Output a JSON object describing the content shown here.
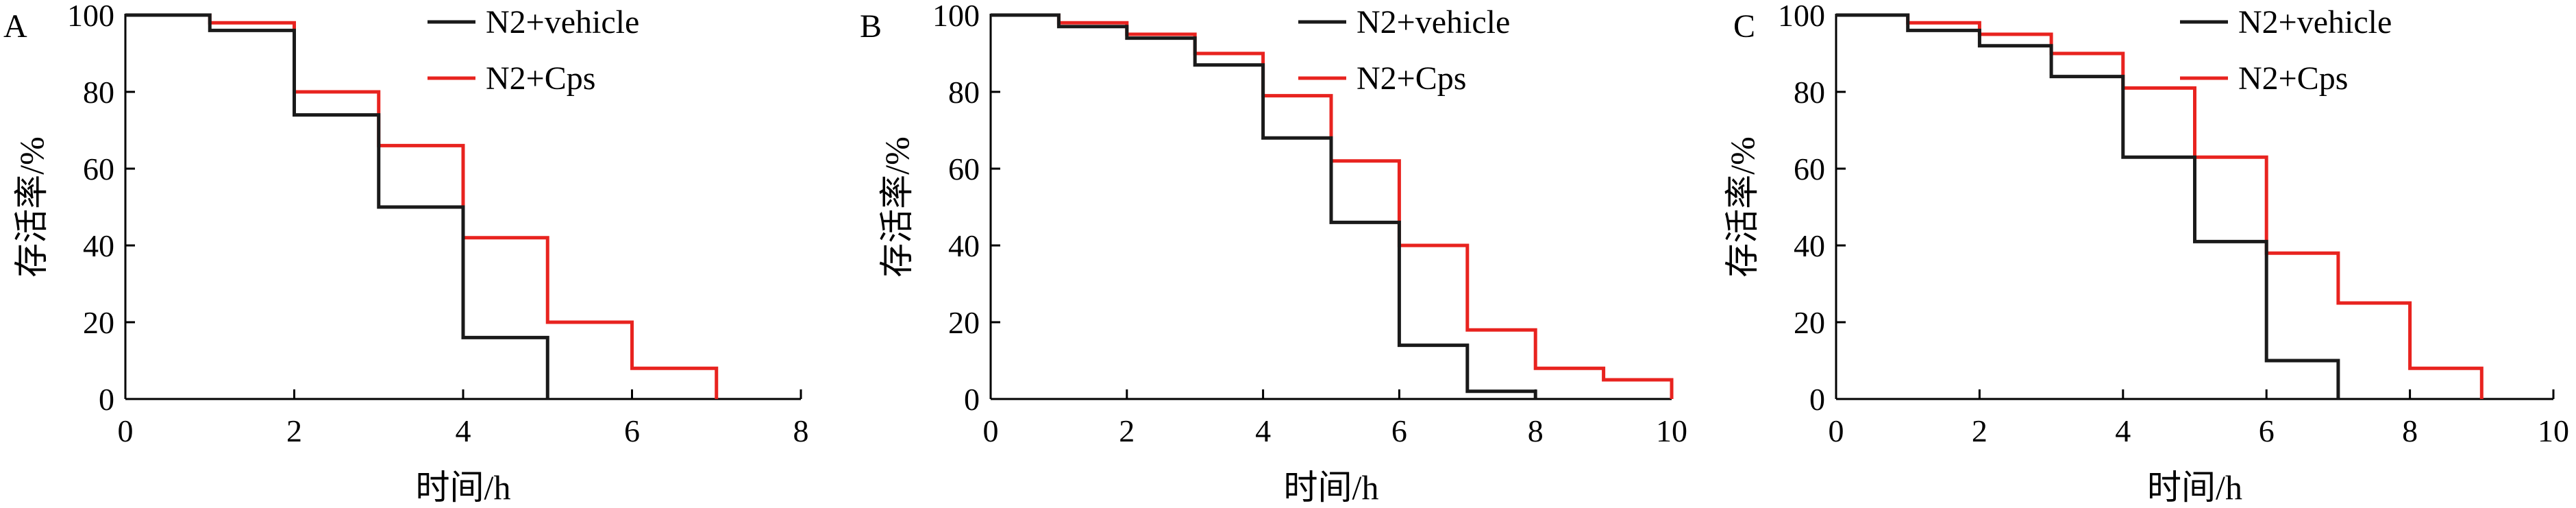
{
  "colors": {
    "vehicle": "#1a1a1a",
    "cps": "#e8231f"
  },
  "chart_data": [
    {
      "panel_label": "A",
      "type": "line",
      "step": true,
      "xlabel": "时间/h",
      "ylabel": "存活率/%",
      "xlim": [
        0,
        8
      ],
      "ylim": [
        0,
        100
      ],
      "xticks": [
        0,
        2,
        4,
        6,
        8
      ],
      "yticks": [
        0,
        20,
        40,
        60,
        80,
        100
      ],
      "legend_position": "top-right",
      "series": [
        {
          "name": "N2+vehicle",
          "color": "#1a1a1a",
          "x": [
            0,
            1,
            2,
            3,
            4,
            5
          ],
          "y": [
            100,
            96,
            74,
            50,
            16,
            0
          ]
        },
        {
          "name": "N2+Cps",
          "color": "#e8231f",
          "x": [
            0,
            1,
            2,
            3,
            4,
            5,
            6,
            7
          ],
          "y": [
            100,
            98,
            80,
            66,
            42,
            20,
            8,
            0
          ]
        }
      ]
    },
    {
      "panel_label": "B",
      "type": "line",
      "step": true,
      "xlabel": "时间/h",
      "ylabel": "存活率/%",
      "xlim": [
        0,
        10
      ],
      "ylim": [
        0,
        100
      ],
      "xticks": [
        0,
        2,
        4,
        6,
        8,
        10
      ],
      "yticks": [
        0,
        20,
        40,
        60,
        80,
        100
      ],
      "legend_position": "top-right",
      "series": [
        {
          "name": "N2+vehicle",
          "color": "#1a1a1a",
          "x": [
            0,
            1,
            2,
            3,
            4,
            5,
            6,
            7,
            8
          ],
          "y": [
            100,
            97,
            94,
            87,
            68,
            46,
            14,
            2,
            0
          ]
        },
        {
          "name": "N2+Cps",
          "color": "#e8231f",
          "x": [
            0,
            1,
            2,
            3,
            4,
            5,
            6,
            7,
            8,
            9,
            10
          ],
          "y": [
            100,
            98,
            95,
            90,
            79,
            62,
            40,
            18,
            8,
            5,
            0
          ]
        }
      ]
    },
    {
      "panel_label": "C",
      "type": "line",
      "step": true,
      "xlabel": "时间/h",
      "ylabel": "存活率/%",
      "xlim": [
        0,
        10
      ],
      "ylim": [
        0,
        100
      ],
      "xticks": [
        0,
        2,
        4,
        6,
        8,
        10
      ],
      "yticks": [
        0,
        20,
        40,
        60,
        80,
        100
      ],
      "legend_position": "top-right",
      "series": [
        {
          "name": "N2+vehicle",
          "color": "#1a1a1a",
          "x": [
            0,
            1,
            2,
            3,
            4,
            5,
            6,
            7
          ],
          "y": [
            100,
            96,
            92,
            84,
            63,
            41,
            10,
            0
          ]
        },
        {
          "name": "N2+Cps",
          "color": "#e8231f",
          "x": [
            0,
            1,
            2,
            3,
            4,
            5,
            6,
            7,
            8,
            9
          ],
          "y": [
            100,
            98,
            95,
            90,
            81,
            63,
            38,
            25,
            8,
            0
          ]
        }
      ]
    }
  ]
}
